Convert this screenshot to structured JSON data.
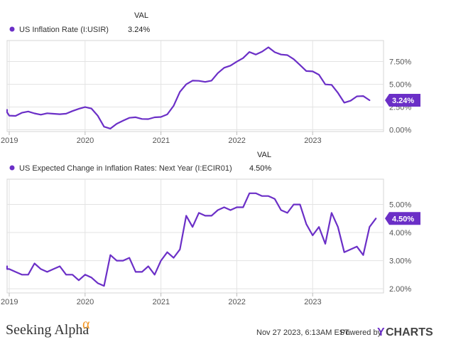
{
  "chart_data": [
    {
      "type": "line",
      "value_header": "VAL",
      "series": [
        {
          "name": "US Inflation Rate (I:USIR)",
          "current_value": "3.24%",
          "color": "#6b2fc7",
          "x": [
            "2018-11",
            "2018-12",
            "2019-01",
            "2019-02",
            "2019-03",
            "2019-04",
            "2019-05",
            "2019-06",
            "2019-07",
            "2019-08",
            "2019-09",
            "2019-10",
            "2019-11",
            "2019-12",
            "2020-01",
            "2020-02",
            "2020-03",
            "2020-04",
            "2020-05",
            "2020-06",
            "2020-07",
            "2020-08",
            "2020-09",
            "2020-10",
            "2020-11",
            "2020-12",
            "2021-01",
            "2021-02",
            "2021-03",
            "2021-04",
            "2021-05",
            "2021-06",
            "2021-07",
            "2021-08",
            "2021-09",
            "2021-10",
            "2021-11",
            "2021-12",
            "2022-01",
            "2022-02",
            "2022-03",
            "2022-04",
            "2022-05",
            "2022-06",
            "2022-07",
            "2022-08",
            "2022-09",
            "2022-10",
            "2022-11",
            "2022-12",
            "2023-01",
            "2023-02",
            "2023-03",
            "2023-04",
            "2023-05",
            "2023-06",
            "2023-07",
            "2023-08",
            "2023-09",
            "2023-10"
          ],
          "values": [
            2.18,
            1.91,
            1.55,
            1.52,
            1.86,
            2.0,
            1.79,
            1.65,
            1.81,
            1.75,
            1.71,
            1.76,
            2.05,
            2.29,
            2.49,
            2.33,
            1.54,
            0.33,
            0.12,
            0.65,
            0.99,
            1.31,
            1.37,
            1.18,
            1.17,
            1.36,
            1.4,
            1.68,
            2.62,
            4.16,
            4.99,
            5.39,
            5.37,
            5.25,
            5.39,
            6.22,
            6.81,
            7.04,
            7.48,
            7.87,
            8.54,
            8.26,
            8.58,
            9.06,
            8.52,
            8.26,
            8.2,
            7.75,
            7.11,
            6.45,
            6.41,
            6.04,
            4.98,
            4.93,
            4.05,
            2.97,
            3.18,
            3.67,
            3.7,
            3.24
          ]
        }
      ],
      "ylim": [
        -0.2,
        9.8
      ],
      "yticks": [
        "0.00%",
        "2.50%",
        "5.00%",
        "7.50%"
      ],
      "xticks": [
        "2019",
        "2020",
        "2021",
        "2022",
        "2023"
      ],
      "grid": true
    },
    {
      "type": "line",
      "value_header": "VAL",
      "series": [
        {
          "name": "US Expected Change in Inflation Rates: Next Year (I:ECIR01)",
          "current_value": "4.50%",
          "color": "#6b2fc7",
          "x": [
            "2018-11",
            "2018-12",
            "2019-01",
            "2019-02",
            "2019-03",
            "2019-04",
            "2019-05",
            "2019-06",
            "2019-07",
            "2019-08",
            "2019-09",
            "2019-10",
            "2019-11",
            "2019-12",
            "2020-01",
            "2020-02",
            "2020-03",
            "2020-04",
            "2020-05",
            "2020-06",
            "2020-07",
            "2020-08",
            "2020-09",
            "2020-10",
            "2020-11",
            "2020-12",
            "2021-01",
            "2021-02",
            "2021-03",
            "2021-04",
            "2021-05",
            "2021-06",
            "2021-07",
            "2021-08",
            "2021-09",
            "2021-10",
            "2021-11",
            "2021-12",
            "2022-01",
            "2022-02",
            "2022-03",
            "2022-04",
            "2022-05",
            "2022-06",
            "2022-07",
            "2022-08",
            "2022-09",
            "2022-10",
            "2022-11",
            "2022-12",
            "2023-01",
            "2023-02",
            "2023-03",
            "2023-04",
            "2023-05",
            "2023-06",
            "2023-07",
            "2023-08",
            "2023-09",
            "2023-10",
            "2023-11"
          ],
          "values": [
            2.8,
            2.7,
            2.7,
            2.6,
            2.5,
            2.5,
            2.9,
            2.7,
            2.6,
            2.7,
            2.8,
            2.5,
            2.5,
            2.3,
            2.5,
            2.4,
            2.2,
            2.1,
            3.2,
            3.0,
            3.0,
            3.1,
            2.6,
            2.6,
            2.8,
            2.5,
            3.0,
            3.3,
            3.1,
            3.4,
            4.6,
            4.2,
            4.7,
            4.6,
            4.6,
            4.8,
            4.9,
            4.8,
            4.9,
            4.9,
            5.4,
            5.4,
            5.3,
            5.3,
            5.2,
            4.8,
            4.7,
            5.0,
            5.0,
            4.3,
            3.9,
            4.2,
            3.6,
            4.7,
            4.2,
            3.3,
            3.4,
            3.5,
            3.2,
            4.2,
            4.5
          ]
        }
      ],
      "ylim": [
        1.85,
        5.9
      ],
      "yticks": [
        "2.00%",
        "3.00%",
        "4.00%",
        "5.00%"
      ],
      "xticks": [
        "2019",
        "2020",
        "2021",
        "2022",
        "2023"
      ],
      "grid": true
    }
  ],
  "footer": {
    "brand_main": "Seeking Alpha",
    "brand_symbol": "α",
    "timestamp": "Nov 27 2023, 6:13AM EST.",
    "powered_by": "Powered by",
    "ycharts_y": "Y",
    "ycharts_rest": "CHARTS"
  }
}
